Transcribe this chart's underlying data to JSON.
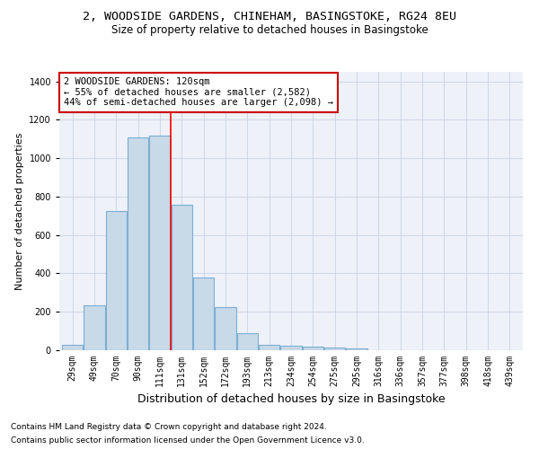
{
  "title_line1": "2, WOODSIDE GARDENS, CHINEHAM, BASINGSTOKE, RG24 8EU",
  "title_line2": "Size of property relative to detached houses in Basingstoke",
  "xlabel": "Distribution of detached houses by size in Basingstoke",
  "ylabel": "Number of detached properties",
  "categories": [
    "29sqm",
    "49sqm",
    "70sqm",
    "90sqm",
    "111sqm",
    "131sqm",
    "152sqm",
    "172sqm",
    "193sqm",
    "213sqm",
    "234sqm",
    "254sqm",
    "275sqm",
    "295sqm",
    "316sqm",
    "336sqm",
    "357sqm",
    "377sqm",
    "398sqm",
    "418sqm",
    "439sqm"
  ],
  "bar_heights": [
    30,
    235,
    725,
    1110,
    1120,
    760,
    380,
    225,
    90,
    30,
    25,
    20,
    15,
    10,
    0,
    0,
    0,
    0,
    0,
    0,
    0
  ],
  "bar_color": "#c8d9e8",
  "bar_edge_color": "#7bafd4",
  "ylim": [
    0,
    1450
  ],
  "yticks": [
    0,
    200,
    400,
    600,
    800,
    1000,
    1200,
    1400
  ],
  "red_line_x": 4.5,
  "annotation_text_line1": "2 WOODSIDE GARDENS: 120sqm",
  "annotation_text_line2": "← 55% of detached houses are smaller (2,582)",
  "annotation_text_line3": "44% of semi-detached houses are larger (2,098) →",
  "footnote_line1": "Contains HM Land Registry data © Crown copyright and database right 2024.",
  "footnote_line2": "Contains public sector information licensed under the Open Government Licence v3.0.",
  "background_color": "#ffffff",
  "grid_color": "#d0d8e8",
  "annotation_box_color": "#ffffff",
  "annotation_box_edge_color": "#cc0000",
  "title_fontsize": 9.5,
  "subtitle_fontsize": 8.5,
  "axis_label_fontsize": 8,
  "tick_fontsize": 7,
  "annotation_fontsize": 7.5,
  "footnote_fontsize": 6.5
}
